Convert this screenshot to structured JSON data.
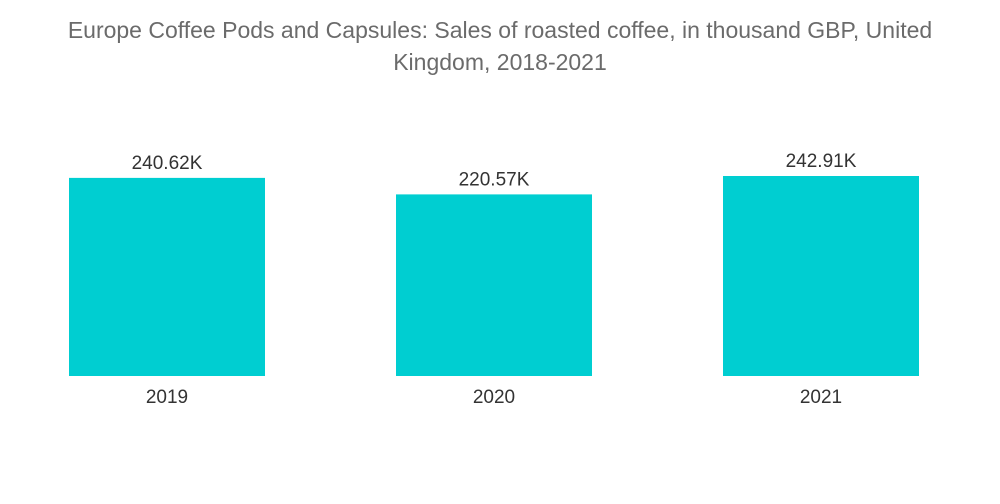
{
  "chart_data": {
    "type": "bar",
    "title": "Europe Coffee Pods and Capsules: Sales of roasted coffee, in thousand GBP, United Kingdom, 2018-2021",
    "xlabel": "",
    "ylabel": "",
    "categories": [
      "2019",
      "2020",
      "2021"
    ],
    "values": [
      240.62,
      220.57,
      242.91
    ],
    "data_labels": [
      "240.62K",
      "220.57K",
      "242.91K"
    ],
    "ylim": [
      0,
      242.91
    ],
    "grid": false,
    "legend": "none",
    "bar_color": "#00ced1"
  }
}
